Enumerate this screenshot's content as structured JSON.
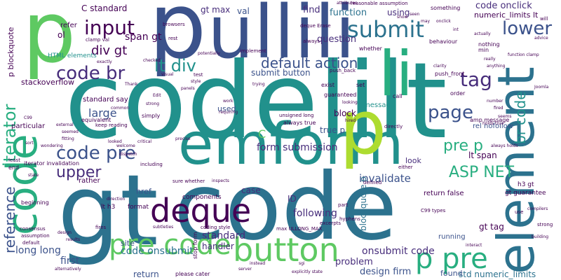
{
  "palette": [
    "#440154",
    "#472d7b",
    "#3b528b",
    "#2c728e",
    "#21918c",
    "#28ae80",
    "#5ec962",
    "#addc30",
    "#fde725"
  ],
  "words": [
    {
      "text": "gt",
      "color": "#2c728e"
    },
    {
      "text": "code",
      "color": "#2c728e"
    },
    {
      "text": "codelilt",
      "color": "#21918c"
    },
    {
      "text": "p",
      "color": "#5ec962"
    },
    {
      "text": "p",
      "color": "#3b528b"
    },
    {
      "text": "ullili",
      "color": "#3b528b"
    },
    {
      "text": "emform",
      "color": "#21918c"
    },
    {
      "text": "element",
      "color": "#2c728e"
    },
    {
      "text": "code",
      "color": "#28ae80"
    },
    {
      "text": "li",
      "color": "#28ae80"
    },
    {
      "text": "p",
      "color": "#addc30"
    },
    {
      "text": "deque",
      "color": "#440154"
    },
    {
      "text": "button",
      "color": "#5ec962"
    },
    {
      "text": "pre code",
      "color": "#5ec962"
    },
    {
      "text": "p pre",
      "color": "#28ae80"
    },
    {
      "text": "submit",
      "color": "#2c728e"
    },
    {
      "text": "input",
      "color": "#440154"
    },
    {
      "text": "lower",
      "color": "#3b528b"
    },
    {
      "text": "code br",
      "color": "#472d7b"
    },
    {
      "text": "lt div",
      "color": "#21918c"
    },
    {
      "text": "code pre",
      "color": "#3b528b"
    },
    {
      "text": "iterator",
      "color": "#28ae80"
    },
    {
      "text": "reference",
      "color": "#3b528b"
    },
    {
      "text": "tag",
      "color": "#472d7b"
    },
    {
      "text": "default action",
      "color": "#3b528b"
    },
    {
      "text": "page",
      "color": "#3b528b"
    },
    {
      "text": "upper",
      "color": "#472d7b"
    },
    {
      "text": "ASP NET",
      "color": "#28ae80"
    },
    {
      "text": "pre p",
      "color": "#28ae80"
    },
    {
      "text": "br code",
      "color": "#21918c"
    },
    {
      "text": "code onclick",
      "color": "#472d7b"
    },
    {
      "text": "numeric_limits lt",
      "color": "#440154"
    },
    {
      "text": "div gt",
      "color": "#440154"
    },
    {
      "text": "span gt",
      "color": "#440154"
    },
    {
      "text": "large",
      "color": "#3b528b"
    },
    {
      "text": "code onsubmit",
      "color": "#2c728e"
    },
    {
      "text": "long long",
      "color": "#3b528b"
    },
    {
      "text": "first",
      "color": "#3b528b"
    },
    {
      "text": "return",
      "color": "#3b528b"
    },
    {
      "text": "invalidate",
      "color": "#3b528b"
    },
    {
      "text": "standard",
      "color": "#472d7b"
    },
    {
      "text": "gt tag",
      "color": "#440154"
    },
    {
      "text": "onsubmit code",
      "color": "#472d7b"
    },
    {
      "text": "std numeric_limits",
      "color": "#2c728e"
    },
    {
      "text": "design firm",
      "color": "#3b528b"
    },
    {
      "text": "problem",
      "color": "#472d7b"
    },
    {
      "text": "following",
      "color": "#472d7b"
    },
    {
      "text": "form submission",
      "color": "#472d7b"
    },
    {
      "text": "submit button",
      "color": "#3b528b"
    },
    {
      "text": "lt span",
      "color": "#440154"
    },
    {
      "text": "handler",
      "color": "#472d7b"
    },
    {
      "text": "site",
      "color": "#3b528b"
    },
    {
      "text": "gt max",
      "color": "#472d7b"
    },
    {
      "text": "find",
      "color": "#472d7b"
    },
    {
      "text": "function",
      "color": "#2c728e"
    },
    {
      "text": "using",
      "color": "#472d7b"
    },
    {
      "text": "question",
      "color": "#472d7b"
    },
    {
      "text": "C standard",
      "color": "#440154"
    },
    {
      "text": "val",
      "color": "#3b528b"
    },
    {
      "text": "ol",
      "color": "#440154"
    },
    {
      "text": "refer",
      "color": "#440154"
    },
    {
      "text": "stackoverflow",
      "color": "#440154"
    },
    {
      "text": "p blockquote",
      "color": "#440154"
    },
    {
      "text": "HTML elements",
      "color": "#21918c"
    },
    {
      "text": "standard say",
      "color": "#440154"
    },
    {
      "text": "block",
      "color": "#440154"
    },
    {
      "text": "message",
      "color": "#21918c"
    },
    {
      "text": "true p",
      "color": "#3b528b"
    },
    {
      "text": "look",
      "color": "#472d7b"
    },
    {
      "text": "ID",
      "color": "#472d7b"
    },
    {
      "text": "case",
      "color": "#472d7b"
    },
    {
      "text": "href",
      "color": "#3b528b"
    },
    {
      "text": "components",
      "color": "#440154"
    },
    {
      "text": "format",
      "color": "#440154"
    },
    {
      "text": "lt h3",
      "color": "#440154"
    },
    {
      "text": "rather",
      "color": "#440154"
    },
    {
      "text": "C",
      "color": "#5ec962"
    },
    {
      "text": "used",
      "color": "#3b528b"
    },
    {
      "text": "blockquote p",
      "color": "#2c728e"
    },
    {
      "text": "running",
      "color": "#3b528b"
    },
    {
      "text": "found",
      "color": "#3b528b"
    },
    {
      "text": "return false",
      "color": "#440154"
    },
    {
      "text": "rel nofollow",
      "color": "#3b528b"
    },
    {
      "text": "gt guarantee",
      "color": "#440154"
    },
    {
      "text": "h3 gt",
      "color": "#440154"
    },
    {
      "text": "amp message",
      "color": "#440154"
    },
    {
      "text": "set",
      "color": "#440154"
    },
    {
      "text": "exist",
      "color": "#440154"
    },
    {
      "text": "push_front",
      "color": "#440154"
    },
    {
      "text": "push_back",
      "color": "#440154"
    },
    {
      "text": "order",
      "color": "#440154"
    },
    {
      "text": "call",
      "color": "#440154"
    },
    {
      "text": "guaranteed",
      "color": "#440154"
    },
    {
      "text": "always true",
      "color": "#440154"
    },
    {
      "text": "unsigned long",
      "color": "#440154"
    },
    {
      "text": "directly",
      "color": "#440154"
    },
    {
      "text": "either",
      "color": "#440154"
    },
    {
      "text": "defined",
      "color": "#440154"
    },
    {
      "text": "stop form",
      "color": "#440154"
    },
    {
      "text": "please cater",
      "color": "#440154"
    },
    {
      "text": "max ULLONG_MAX",
      "color": "#440154"
    },
    {
      "text": "coding style",
      "color": "#440154"
    },
    {
      "text": "excerpts",
      "color": "#440154"
    },
    {
      "text": "hyphens",
      "color": "#440154"
    },
    {
      "text": "part",
      "color": "#440154"
    },
    {
      "text": "C99 types",
      "color": "#440154"
    },
    {
      "text": "simply",
      "color": "#440154"
    },
    {
      "text": "equivalent",
      "color": "#440154"
    },
    {
      "text": "keep reading",
      "color": "#440154"
    },
    {
      "text": "particular",
      "color": "#440154"
    },
    {
      "text": "iterator invalidation",
      "color": "#440154"
    },
    {
      "text": "beginning",
      "color": "#440154"
    },
    {
      "text": "end",
      "color": "#440154"
    },
    {
      "text": "least",
      "color": "#440154"
    },
    {
      "text": "whether",
      "color": "#440154"
    },
    {
      "text": "behaviour",
      "color": "#440154"
    },
    {
      "text": "nothing",
      "color": "#440154"
    },
    {
      "text": "min",
      "color": "#440154"
    },
    {
      "text": "something",
      "color": "#440154"
    },
    {
      "text": "reasonable assumption",
      "color": "#440154"
    },
    {
      "text": "deque Erase",
      "color": "#440154"
    },
    {
      "text": "always",
      "color": "#440154"
    },
    {
      "text": "implement",
      "color": "#440154"
    },
    {
      "text": "potentially",
      "color": "#440154"
    },
    {
      "text": "rest",
      "color": "#440154"
    },
    {
      "text": "browsers",
      "color": "#440154"
    },
    {
      "text": "clamp val",
      "color": "#440154"
    },
    {
      "text": "exactly",
      "color": "#440154"
    },
    {
      "text": "Thank",
      "color": "#440154"
    },
    {
      "text": "test",
      "color": "#440154"
    },
    {
      "text": "Edit",
      "color": "#440154"
    },
    {
      "text": "strong",
      "color": "#440154"
    },
    {
      "text": "work",
      "color": "#440154"
    },
    {
      "text": "welcome",
      "color": "#440154"
    },
    {
      "text": "including",
      "color": "#440154"
    },
    {
      "text": "sure whether",
      "color": "#440154"
    },
    {
      "text": "inspects",
      "color": "#440154"
    },
    {
      "text": "direction",
      "color": "#440154"
    },
    {
      "text": "subtleties",
      "color": "#440154"
    },
    {
      "text": "fires",
      "color": "#440154"
    },
    {
      "text": "consensus",
      "color": "#440154"
    },
    {
      "text": "default",
      "color": "#440154"
    },
    {
      "text": "assumption",
      "color": "#440154"
    },
    {
      "text": "alternatively",
      "color": "#440154"
    },
    {
      "text": "server",
      "color": "#440154"
    },
    {
      "text": "instead",
      "color": "#440154"
    },
    {
      "text": "sgi",
      "color": "#440154"
    },
    {
      "text": "explicitly state",
      "color": "#440154"
    },
    {
      "text": "compilers",
      "color": "#440154"
    },
    {
      "text": "strong",
      "color": "#440154"
    },
    {
      "text": "building",
      "color": "#440154"
    },
    {
      "text": "advice",
      "color": "#440154"
    },
    {
      "text": "function clamp",
      "color": "#440154"
    },
    {
      "text": "onclick",
      "color": "#440154"
    },
    {
      "text": "int",
      "color": "#440154"
    },
    {
      "text": "actually",
      "color": "#440154"
    },
    {
      "text": "really",
      "color": "#440154"
    },
    {
      "text": "anything",
      "color": "#440154"
    },
    {
      "text": "clarity",
      "color": "#440154"
    },
    {
      "text": "number",
      "color": "#440154"
    },
    {
      "text": "fired",
      "color": "#440154"
    },
    {
      "text": "holds true",
      "color": "#440154"
    },
    {
      "text": "seems",
      "color": "#440154"
    },
    {
      "text": "always holds",
      "color": "#440154"
    },
    {
      "text": "looking",
      "color": "#440154"
    },
    {
      "text": "hired",
      "color": "#440154"
    },
    {
      "text": "requiring",
      "color": "#440154"
    },
    {
      "text": "common",
      "color": "#440154"
    },
    {
      "text": "panels",
      "color": "#440154"
    },
    {
      "text": "style",
      "color": "#440154"
    },
    {
      "text": "trying",
      "color": "#440154"
    },
    {
      "text": "visual",
      "color": "#440154"
    },
    {
      "text": "checked",
      "color": "#440154"
    },
    {
      "text": "C99",
      "color": "#440154"
    },
    {
      "text": "sort",
      "color": "#440154"
    },
    {
      "text": "fitting",
      "color": "#440154"
    },
    {
      "text": "seemed",
      "color": "#440154"
    },
    {
      "text": "external",
      "color": "#440154"
    },
    {
      "text": "wondering",
      "color": "#440154"
    },
    {
      "text": "state",
      "color": "#440154"
    },
    {
      "text": "design",
      "color": "#440154"
    },
    {
      "text": "results",
      "color": "#440154"
    },
    {
      "text": "looked",
      "color": "#440154"
    },
    {
      "text": "dispatch",
      "color": "#440154"
    },
    {
      "text": "critical",
      "color": "#440154"
    },
    {
      "text": "precise",
      "color": "#440154"
    },
    {
      "text": "attributes",
      "color": "#440154"
    },
    {
      "text": "seen",
      "color": "#440154"
    },
    {
      "text": "may",
      "color": "#440154"
    },
    {
      "text": "show",
      "color": "#440154"
    },
    {
      "text": "will",
      "color": "#440154"
    },
    {
      "text": "interact",
      "color": "#440154"
    },
    {
      "text": "Joomla",
      "color": "#440154"
    },
    {
      "text": "use",
      "color": "#440154"
    }
  ]
}
